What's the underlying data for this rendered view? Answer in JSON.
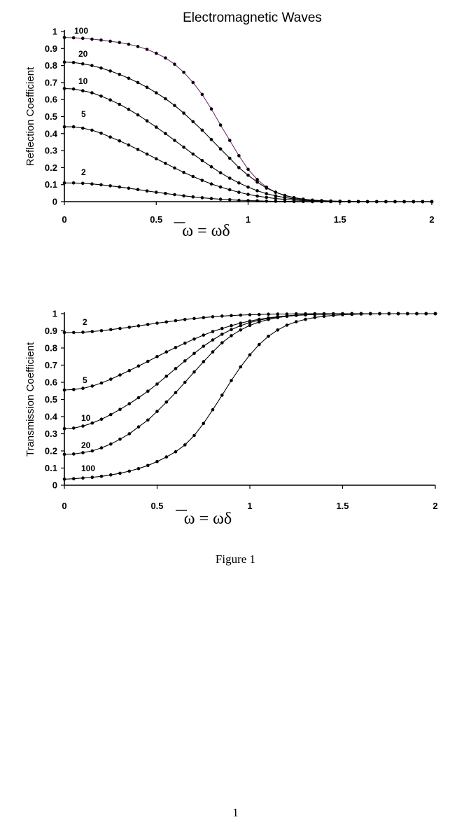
{
  "caption": "Figure 1",
  "page_number": "1",
  "chart_data": [
    {
      "type": "line",
      "title": "Electromagnetic Waves",
      "ylabel": "Reflection Coefficient",
      "xlabel": "ω = ωδ",
      "xlim": [
        0,
        2
      ],
      "ylim": [
        0,
        1
      ],
      "xticks": [
        "0",
        "0.5",
        "1",
        "1.5",
        "2"
      ],
      "yticks": [
        "0",
        "0.1",
        "0.2",
        "0.3",
        "0.4",
        "0.5",
        "0.6",
        "0.7",
        "0.8",
        "0.9",
        "1"
      ],
      "x": [
        0,
        0.05,
        0.1,
        0.15,
        0.2,
        0.25,
        0.3,
        0.35,
        0.4,
        0.45,
        0.5,
        0.55,
        0.6,
        0.65,
        0.7,
        0.75,
        0.8,
        0.85,
        0.9,
        0.95,
        1.0,
        1.05,
        1.1,
        1.15,
        1.2,
        1.25,
        1.3,
        1.35,
        1.4,
        1.45,
        1.5,
        1.55,
        1.6,
        1.65,
        1.7,
        1.75,
        1.8,
        1.85,
        1.9,
        1.95,
        2.0
      ],
      "series": [
        {
          "name": "100",
          "color": "#7a2a7a",
          "values": [
            0.965,
            0.963,
            0.96,
            0.955,
            0.95,
            0.943,
            0.935,
            0.925,
            0.912,
            0.895,
            0.872,
            0.845,
            0.808,
            0.76,
            0.7,
            0.63,
            0.545,
            0.45,
            0.36,
            0.27,
            0.19,
            0.13,
            0.085,
            0.055,
            0.035,
            0.022,
            0.013,
            0.008,
            0.005,
            0.003,
            0.002,
            0.001,
            0.001,
            0.0,
            0.0,
            0.0,
            0.0,
            0.0,
            0.0,
            0.0,
            0.0
          ]
        },
        {
          "name": "20",
          "color": "#000000",
          "values": [
            0.82,
            0.818,
            0.81,
            0.8,
            0.785,
            0.768,
            0.748,
            0.725,
            0.7,
            0.672,
            0.64,
            0.605,
            0.565,
            0.52,
            0.47,
            0.42,
            0.365,
            0.31,
            0.255,
            0.2,
            0.155,
            0.115,
            0.08,
            0.055,
            0.037,
            0.024,
            0.015,
            0.009,
            0.006,
            0.004,
            0.002,
            0.001,
            0.001,
            0.0,
            0.0,
            0.0,
            0.0,
            0.0,
            0.0,
            0.0,
            0.0
          ]
        },
        {
          "name": "10",
          "color": "#000000",
          "values": [
            0.665,
            0.662,
            0.652,
            0.64,
            0.62,
            0.598,
            0.572,
            0.543,
            0.51,
            0.475,
            0.438,
            0.4,
            0.36,
            0.32,
            0.28,
            0.242,
            0.205,
            0.17,
            0.138,
            0.11,
            0.085,
            0.064,
            0.047,
            0.034,
            0.024,
            0.016,
            0.011,
            0.007,
            0.005,
            0.003,
            0.002,
            0.001,
            0.001,
            0.0,
            0.0,
            0.0,
            0.0,
            0.0,
            0.0,
            0.0,
            0.0
          ]
        },
        {
          "name": "5",
          "color": "#000000",
          "values": [
            0.44,
            0.44,
            0.432,
            0.42,
            0.402,
            0.38,
            0.357,
            0.333,
            0.307,
            0.28,
            0.252,
            0.225,
            0.198,
            0.172,
            0.148,
            0.125,
            0.104,
            0.086,
            0.07,
            0.055,
            0.043,
            0.033,
            0.025,
            0.018,
            0.013,
            0.009,
            0.006,
            0.004,
            0.003,
            0.002,
            0.001,
            0.001,
            0.0,
            0.0,
            0.0,
            0.0,
            0.0,
            0.0,
            0.0,
            0.0,
            0.0
          ]
        },
        {
          "name": "2",
          "color": "#000000",
          "values": [
            0.11,
            0.11,
            0.108,
            0.104,
            0.099,
            0.093,
            0.086,
            0.079,
            0.071,
            0.063,
            0.055,
            0.048,
            0.041,
            0.034,
            0.028,
            0.023,
            0.018,
            0.014,
            0.011,
            0.008,
            0.006,
            0.005,
            0.003,
            0.002,
            0.002,
            0.001,
            0.001,
            0.0,
            0.0,
            0.0,
            0.0,
            0.0,
            0.0,
            0.0,
            0.0,
            0.0,
            0.0,
            0.0,
            0.0,
            0.0,
            0.0
          ]
        }
      ]
    },
    {
      "type": "line",
      "title": "",
      "ylabel": "Transmission Coefficient",
      "xlabel": "ω = ωδ",
      "xlim": [
        0,
        2
      ],
      "ylim": [
        0,
        1
      ],
      "xticks": [
        "0",
        "0.5",
        "1",
        "1.5",
        "2"
      ],
      "yticks": [
        "0",
        "0.1",
        "0.2",
        "0.3",
        "0.4",
        "0.5",
        "0.6",
        "0.7",
        "0.8",
        "0.9",
        "1"
      ],
      "x": [
        0,
        0.05,
        0.1,
        0.15,
        0.2,
        0.25,
        0.3,
        0.35,
        0.4,
        0.45,
        0.5,
        0.55,
        0.6,
        0.65,
        0.7,
        0.75,
        0.8,
        0.85,
        0.9,
        0.95,
        1.0,
        1.05,
        1.1,
        1.15,
        1.2,
        1.25,
        1.3,
        1.35,
        1.4,
        1.45,
        1.5,
        1.55,
        1.6,
        1.65,
        1.7,
        1.75,
        1.8,
        1.85,
        1.9,
        1.95,
        2.0
      ],
      "series": [
        {
          "name": "2",
          "color": "#000000",
          "values": [
            0.89,
            0.89,
            0.892,
            0.896,
            0.901,
            0.907,
            0.914,
            0.921,
            0.929,
            0.937,
            0.945,
            0.952,
            0.959,
            0.966,
            0.972,
            0.977,
            0.982,
            0.986,
            0.989,
            0.992,
            0.994,
            0.995,
            0.997,
            0.998,
            0.998,
            0.999,
            0.999,
            1.0,
            1.0,
            1.0,
            1.0,
            1.0,
            1.0,
            1.0,
            1.0,
            1.0,
            1.0,
            1.0,
            1.0,
            1.0,
            1.0
          ]
        },
        {
          "name": "5",
          "color": "#000000",
          "values": [
            0.555,
            0.558,
            0.565,
            0.578,
            0.596,
            0.618,
            0.643,
            0.668,
            0.695,
            0.722,
            0.75,
            0.777,
            0.803,
            0.828,
            0.852,
            0.875,
            0.896,
            0.914,
            0.93,
            0.945,
            0.957,
            0.967,
            0.975,
            0.982,
            0.987,
            0.991,
            0.994,
            0.996,
            0.997,
            0.998,
            0.999,
            1.0,
            1.0,
            1.0,
            1.0,
            1.0,
            1.0,
            1.0,
            1.0,
            1.0,
            1.0
          ]
        },
        {
          "name": "10",
          "color": "#000000",
          "values": [
            0.33,
            0.333,
            0.345,
            0.362,
            0.385,
            0.412,
            0.442,
            0.475,
            0.51,
            0.548,
            0.59,
            0.635,
            0.68,
            0.725,
            0.768,
            0.81,
            0.847,
            0.88,
            0.907,
            0.93,
            0.948,
            0.962,
            0.973,
            0.981,
            0.987,
            0.991,
            0.994,
            0.996,
            0.997,
            0.998,
            0.999,
            1.0,
            1.0,
            1.0,
            1.0,
            1.0,
            1.0,
            1.0,
            1.0,
            1.0,
            1.0
          ]
        },
        {
          "name": "20",
          "color": "#000000",
          "values": [
            0.18,
            0.182,
            0.19,
            0.2,
            0.218,
            0.24,
            0.268,
            0.3,
            0.34,
            0.38,
            0.43,
            0.485,
            0.54,
            0.6,
            0.66,
            0.72,
            0.777,
            0.83,
            0.872,
            0.905,
            0.932,
            0.952,
            0.966,
            0.977,
            0.985,
            0.99,
            0.993,
            0.996,
            0.997,
            0.998,
            0.999,
            1.0,
            1.0,
            1.0,
            1.0,
            1.0,
            1.0,
            1.0,
            1.0,
            1.0,
            1.0
          ]
        },
        {
          "name": "100",
          "color": "#000000",
          "values": [
            0.035,
            0.038,
            0.042,
            0.046,
            0.052,
            0.06,
            0.07,
            0.082,
            0.097,
            0.115,
            0.138,
            0.165,
            0.195,
            0.235,
            0.29,
            0.36,
            0.44,
            0.525,
            0.61,
            0.69,
            0.76,
            0.82,
            0.868,
            0.905,
            0.933,
            0.953,
            0.967,
            0.978,
            0.985,
            0.99,
            0.994,
            0.996,
            0.998,
            0.999,
            1.0,
            1.0,
            1.0,
            1.0,
            1.0,
            1.0,
            1.0
          ]
        }
      ]
    }
  ]
}
